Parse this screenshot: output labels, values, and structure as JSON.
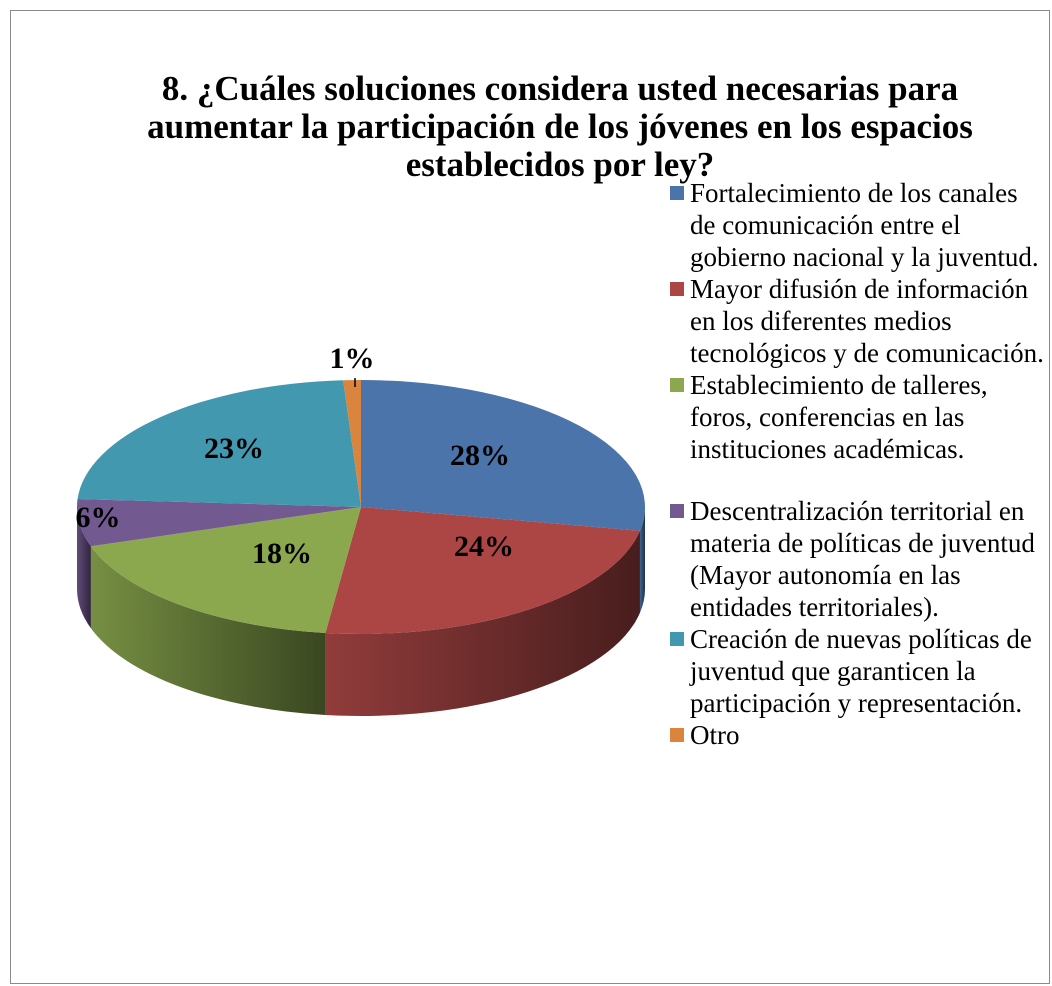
{
  "chart_data": {
    "type": "pie",
    "title": "8. ¿Cuáles soluciones considera usted necesarias para aumentar la participación de los jóvenes en los espacios establecidos por ley?",
    "legend_position": "right",
    "three_d": true,
    "slices": [
      {
        "label": "Fortalecimiento de los canales de comunicación entre el gobierno nacional y la juventud.",
        "value": 28,
        "display": "28%",
        "color": "#4A74AA"
      },
      {
        "label": "Mayor difusión de información en los diferentes medios tecnológicos y de comunicación.",
        "value": 24,
        "display": "24%",
        "color": "#AB4645"
      },
      {
        "label": "Establecimiento de talleres, foros, conferencias en las instituciones académicas.",
        "value": 18,
        "display": "18%",
        "color": "#8BA84E"
      },
      {
        "label": "Descentralización territorial en materia de políticas de juventud (Mayor autonomía en las entidades territoriales).",
        "value": 6,
        "display": "6%",
        "color": "#725990"
      },
      {
        "label": "Creación de nuevas políticas de juventud que garanticen la participación y representación.",
        "value": 23,
        "display": "23%",
        "color": "#4198AF"
      },
      {
        "label": "Otro",
        "value": 1,
        "display": "1%",
        "color": "#DB843D"
      }
    ]
  }
}
